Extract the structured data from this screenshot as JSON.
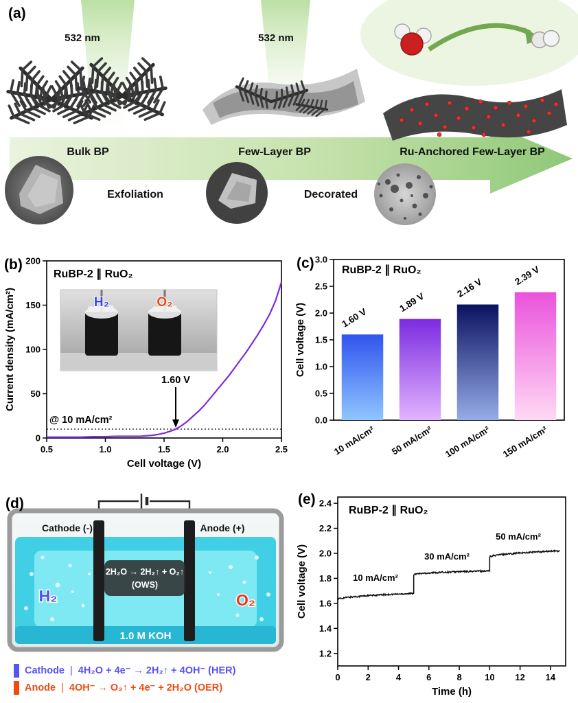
{
  "panels": {
    "a": {
      "label": "(a)",
      "laser_wavelength_left": "532 nm",
      "laser_wavelength_mid": "532 nm",
      "stage_bulk": "Bulk BP",
      "stage_fewlayer": "Few-Layer BP",
      "stage_ru": "Ru-Anchored Few-Layer BP",
      "process_1": "Exfoliation",
      "process_2": "Decorated"
    },
    "b": {
      "label": "(b)",
      "title": "RuBP-2 ∥ RuO₂",
      "xlabel": "Cell voltage (V)",
      "ylabel": "Current density (mA/cm²)",
      "inset_h2": "H₂",
      "inset_o2": "O₂",
      "annotation_current": "@ 10 mA/cm²",
      "annotation_voltage": "1.60 V"
    },
    "c": {
      "label": "(c)",
      "title": "RuBP-2 ∥ RuO₂",
      "ylabel": "Cell voltage (V)"
    },
    "d": {
      "label": "(d)",
      "cathode_label": "Cathode (-)",
      "anode_label": "Anode (+)",
      "reaction_line1": "2H₂O → 2H₂↑ + O₂↑",
      "reaction_line2": "(OWS)",
      "h2_label": "H₂",
      "o2_label": "O₂",
      "electrolyte": "1.0 M KOH",
      "cathode_word": "Cathode",
      "anode_word": "Anode",
      "divider": "|",
      "her_equation": "4H₂O + 4e⁻ → 2H₂↑ + 4OH⁻ (HER)",
      "oer_equation": "4OH⁻ → O₂↑ + 4e⁻ + 2H₂O (OER)"
    },
    "e": {
      "label": "(e)",
      "title": "RuBP-2 ∥ RuO₂",
      "xlabel": "Time (h)",
      "ylabel": "Cell voltage (V)"
    }
  },
  "chart_data": [
    {
      "id": "lsv",
      "type": "line",
      "title": "RuBP-2 ∥ RuO₂",
      "xlabel": "Cell voltage (V)",
      "ylabel": "Current density (mA/cm²)",
      "xlim": [
        0.5,
        2.5
      ],
      "ylim": [
        0,
        200
      ],
      "xticks": [
        0.5,
        1.0,
        1.5,
        2.0,
        2.5
      ],
      "xtick_labels": [
        "0.5",
        "1.0",
        "1.5",
        "2.0",
        "2.5"
      ],
      "yticks": [
        0,
        50,
        100,
        150,
        200
      ],
      "ytick_labels": [
        "0",
        "50",
        "100",
        "150",
        "200"
      ],
      "dashed_line_y": 10,
      "line_color": "#7d2ae0",
      "annotations": [
        "@ 10 mA/cm²",
        "1.60 V"
      ],
      "x": [
        0.5,
        0.6,
        0.7,
        0.8,
        0.9,
        1.0,
        1.1,
        1.2,
        1.3,
        1.35,
        1.4,
        1.45,
        1.5,
        1.55,
        1.6,
        1.65,
        1.7,
        1.75,
        1.8,
        1.85,
        1.9,
        1.95,
        2.0,
        2.05,
        2.1,
        2.15,
        2.2,
        2.25,
        2.3,
        2.35,
        2.4,
        2.45,
        2.5
      ],
      "y": [
        1,
        1,
        1,
        1,
        1.5,
        1.5,
        2,
        2,
        2,
        2.5,
        3,
        4,
        5.5,
        7.5,
        10,
        14,
        19,
        25,
        31,
        38,
        46,
        54,
        62,
        70,
        79,
        88,
        97,
        107,
        117,
        128,
        140,
        155,
        176
      ]
    },
    {
      "id": "bars",
      "type": "bar",
      "title": "RuBP-2 ∥ RuO₂",
      "ylabel": "Cell voltage (V)",
      "ylim": [
        0,
        3.0
      ],
      "yticks": [
        0,
        0.5,
        1.0,
        1.5,
        2.0,
        2.5,
        3.0
      ],
      "ytick_labels": [
        "0.0",
        "0.5",
        "1.0",
        "1.5",
        "2.0",
        "2.5",
        "3.0"
      ],
      "categories": [
        "10 mA/cm²",
        "50 mA/cm²",
        "100 mA/cm²",
        "150 mA/cm²"
      ],
      "values": [
        1.6,
        1.89,
        2.16,
        2.39
      ],
      "value_labels": [
        "1.60 V",
        "1.89 V",
        "2.16 V",
        "2.39 V"
      ],
      "bar_gradients": [
        [
          "#2f55ee",
          "#8fc6ff"
        ],
        [
          "#7b2be0",
          "#e2b4ff"
        ],
        [
          "#0a1260",
          "#96ace8"
        ],
        [
          "#ea52dc",
          "#ffd9f4"
        ]
      ]
    },
    {
      "id": "stability",
      "type": "step",
      "title": "RuBP-2 ∥ RuO₂",
      "xlabel": "Time (h)",
      "ylabel": "Cell voltage (V)",
      "xlim": [
        0,
        15
      ],
      "ylim": [
        1.1,
        2.45
      ],
      "xticks": [
        0,
        2,
        4,
        6,
        8,
        10,
        12,
        14
      ],
      "xtick_labels": [
        "0",
        "2",
        "4",
        "6",
        "8",
        "10",
        "12",
        "14"
      ],
      "yticks": [
        1.2,
        1.4,
        1.6,
        1.8,
        2.0,
        2.2,
        2.4
      ],
      "ytick_labels": [
        "1.2",
        "1.4",
        "1.6",
        "1.8",
        "2.0",
        "2.2",
        "2.4"
      ],
      "line_color": "#111111",
      "segments": [
        {
          "current": "10 mA/cm²",
          "x_start": 0,
          "x_end": 5,
          "v_start": 1.63,
          "v_end": 1.68,
          "label_x": 1.0,
          "label_y": 1.78
        },
        {
          "current": "30 mA/cm²",
          "x_start": 5,
          "x_end": 10,
          "v_start": 1.83,
          "v_end": 1.86,
          "label_x": 5.7,
          "label_y": 1.95
        },
        {
          "current": "50 mA/cm²",
          "x_start": 10,
          "x_end": 14.6,
          "v_start": 1.97,
          "v_end": 2.02,
          "label_x": 10.4,
          "label_y": 2.11
        }
      ]
    }
  ]
}
